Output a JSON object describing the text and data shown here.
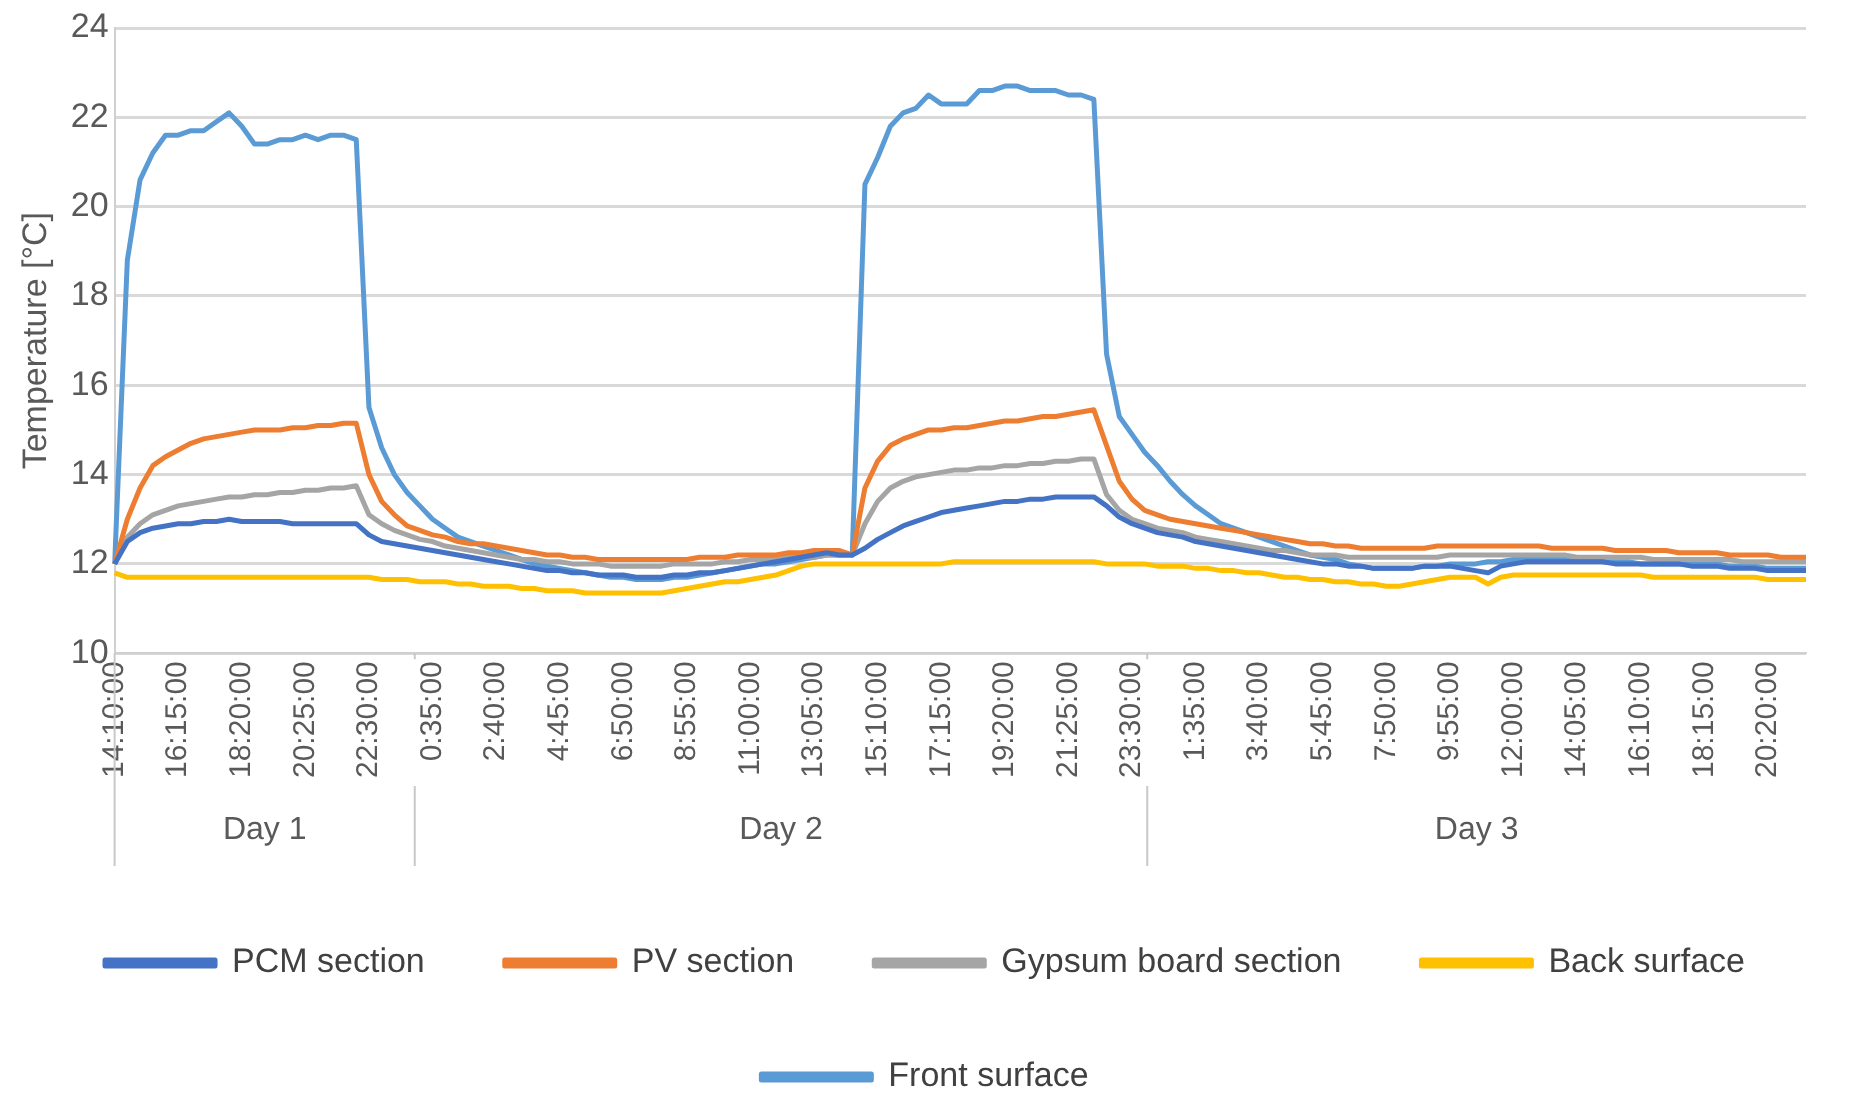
{
  "chart_data": {
    "type": "line",
    "ylabel": "Temperature [°C]",
    "ylim": [
      10,
      24
    ],
    "yticks": [
      10,
      12,
      14,
      16,
      18,
      20,
      22,
      24
    ],
    "grid": "y",
    "legend": "bottom",
    "categories": [
      "14:10:00",
      null,
      null,
      null,
      null,
      "16:15:00",
      null,
      null,
      null,
      null,
      "18:20:00",
      null,
      null,
      null,
      null,
      "20:25:00",
      null,
      null,
      null,
      null,
      "22:30:00",
      null,
      null,
      null,
      null,
      "0:35:00",
      null,
      null,
      null,
      null,
      "2:40:00",
      null,
      null,
      null,
      null,
      "4:45:00",
      null,
      null,
      null,
      null,
      "6:50:00",
      null,
      null,
      null,
      null,
      "8:55:00",
      null,
      null,
      null,
      null,
      "11:00:00",
      null,
      null,
      null,
      null,
      "13:05:00",
      null,
      null,
      null,
      null,
      "15:10:00",
      null,
      null,
      null,
      null,
      "17:15:00",
      null,
      null,
      null,
      null,
      "19:20:00",
      null,
      null,
      null,
      null,
      "21:25:00",
      null,
      null,
      null,
      null,
      "23:30:00",
      null,
      null,
      null,
      null,
      "1:35:00",
      null,
      null,
      null,
      null,
      "3:40:00",
      null,
      null,
      null,
      null,
      "5:45:00",
      null,
      null,
      null,
      null,
      "7:50:00",
      null,
      null,
      null,
      null,
      "9:55:00",
      null,
      null,
      null,
      null,
      "12:00:00",
      null,
      null,
      null,
      null,
      "14:05:00",
      null,
      null,
      null,
      null,
      "16:10:00",
      null,
      null,
      null,
      null,
      "18:15:00",
      null,
      null,
      null,
      null,
      "20:20:00",
      null,
      null,
      null
    ],
    "annotations": [
      "Day 1",
      "Day 2",
      "Day 3"
    ],
    "series": [
      {
        "name": "PCM section",
        "color": "#4472c4",
        "values": [
          12.0,
          12.5,
          12.7,
          12.8,
          12.85,
          12.9,
          12.9,
          12.95,
          12.95,
          13.0,
          12.95,
          12.95,
          12.95,
          12.95,
          12.9,
          12.9,
          12.9,
          12.9,
          12.9,
          12.9,
          12.65,
          12.5,
          12.45,
          12.4,
          12.35,
          12.3,
          12.25,
          12.2,
          12.15,
          12.1,
          12.05,
          12.0,
          11.95,
          11.9,
          11.85,
          11.85,
          11.8,
          11.8,
          11.75,
          11.75,
          11.75,
          11.7,
          11.7,
          11.7,
          11.75,
          11.75,
          11.8,
          11.8,
          11.85,
          11.9,
          11.95,
          12.0,
          12.05,
          12.1,
          12.15,
          12.2,
          12.25,
          12.2,
          12.2,
          12.35,
          12.55,
          12.7,
          12.85,
          12.95,
          13.05,
          13.15,
          13.2,
          13.25,
          13.3,
          13.35,
          13.4,
          13.4,
          13.45,
          13.45,
          13.5,
          13.5,
          13.5,
          13.5,
          13.3,
          13.05,
          12.9,
          12.8,
          12.7,
          12.65,
          12.6,
          12.5,
          12.45,
          12.4,
          12.35,
          12.3,
          12.25,
          12.2,
          12.15,
          12.1,
          12.05,
          12.0,
          12.0,
          11.95,
          11.95,
          11.9,
          11.9,
          11.9,
          11.9,
          11.95,
          11.95,
          11.95,
          11.9,
          11.85,
          11.8,
          11.95,
          12.0,
          12.05,
          12.05,
          12.05,
          12.05,
          12.05,
          12.05,
          12.05,
          12.0,
          12.0,
          12.0,
          12.0,
          12.0,
          12.0,
          11.95,
          11.95,
          11.95,
          11.9,
          11.9,
          11.9,
          11.85,
          11.85,
          11.85,
          11.85
        ]
      },
      {
        "name": "PV section",
        "color": "#ed7d31",
        "values": [
          12.0,
          13.0,
          13.7,
          14.2,
          14.4,
          14.55,
          14.7,
          14.8,
          14.85,
          14.9,
          14.95,
          15.0,
          15.0,
          15.0,
          15.05,
          15.05,
          15.1,
          15.1,
          15.15,
          15.15,
          14.0,
          13.4,
          13.1,
          12.85,
          12.75,
          12.65,
          12.6,
          12.5,
          12.45,
          12.45,
          12.4,
          12.35,
          12.3,
          12.25,
          12.2,
          12.2,
          12.15,
          12.15,
          12.1,
          12.1,
          12.1,
          12.1,
          12.1,
          12.1,
          12.1,
          12.1,
          12.15,
          12.15,
          12.15,
          12.2,
          12.2,
          12.2,
          12.2,
          12.25,
          12.25,
          12.3,
          12.3,
          12.3,
          12.2,
          13.7,
          14.3,
          14.65,
          14.8,
          14.9,
          15.0,
          15.0,
          15.05,
          15.05,
          15.1,
          15.15,
          15.2,
          15.2,
          15.25,
          15.3,
          15.3,
          15.35,
          15.4,
          15.45,
          14.65,
          13.85,
          13.45,
          13.2,
          13.1,
          13.0,
          12.95,
          12.9,
          12.85,
          12.8,
          12.75,
          12.7,
          12.65,
          12.6,
          12.55,
          12.5,
          12.45,
          12.45,
          12.4,
          12.4,
          12.35,
          12.35,
          12.35,
          12.35,
          12.35,
          12.35,
          12.4,
          12.4,
          12.4,
          12.4,
          12.4,
          12.4,
          12.4,
          12.4,
          12.4,
          12.35,
          12.35,
          12.35,
          12.35,
          12.35,
          12.3,
          12.3,
          12.3,
          12.3,
          12.3,
          12.25,
          12.25,
          12.25,
          12.25,
          12.2,
          12.2,
          12.2,
          12.2,
          12.15,
          12.15,
          12.15
        ]
      },
      {
        "name": "Gypsum board section",
        "color": "#a5a5a5",
        "values": [
          12.0,
          12.6,
          12.9,
          13.1,
          13.2,
          13.3,
          13.35,
          13.4,
          13.45,
          13.5,
          13.5,
          13.55,
          13.55,
          13.6,
          13.6,
          13.65,
          13.65,
          13.7,
          13.7,
          13.75,
          13.1,
          12.9,
          12.75,
          12.65,
          12.55,
          12.5,
          12.4,
          12.35,
          12.3,
          12.25,
          12.2,
          12.15,
          12.1,
          12.1,
          12.05,
          12.05,
          12.0,
          12.0,
          12.0,
          11.95,
          11.95,
          11.95,
          11.95,
          11.95,
          12.0,
          12.0,
          12.0,
          12.0,
          12.05,
          12.05,
          12.1,
          12.1,
          12.1,
          12.15,
          12.15,
          12.15,
          12.2,
          12.2,
          12.2,
          12.9,
          13.4,
          13.7,
          13.85,
          13.95,
          14.0,
          14.05,
          14.1,
          14.1,
          14.15,
          14.15,
          14.2,
          14.2,
          14.25,
          14.25,
          14.3,
          14.3,
          14.35,
          14.35,
          13.55,
          13.2,
          13.0,
          12.9,
          12.8,
          12.75,
          12.7,
          12.6,
          12.55,
          12.5,
          12.45,
          12.4,
          12.35,
          12.3,
          12.3,
          12.25,
          12.2,
          12.2,
          12.2,
          12.15,
          12.15,
          12.15,
          12.15,
          12.15,
          12.15,
          12.15,
          12.15,
          12.2,
          12.2,
          12.2,
          12.2,
          12.2,
          12.2,
          12.2,
          12.2,
          12.2,
          12.2,
          12.15,
          12.15,
          12.15,
          12.15,
          12.15,
          12.15,
          12.1,
          12.1,
          12.1,
          12.1,
          12.1,
          12.1,
          12.1,
          12.05,
          12.05,
          12.05,
          12.05,
          12.05,
          12.05
        ]
      },
      {
        "name": "Back surface",
        "color": "#ffc000",
        "values": [
          11.8,
          11.7,
          11.7,
          11.7,
          11.7,
          11.7,
          11.7,
          11.7,
          11.7,
          11.7,
          11.7,
          11.7,
          11.7,
          11.7,
          11.7,
          11.7,
          11.7,
          11.7,
          11.7,
          11.7,
          11.7,
          11.65,
          11.65,
          11.65,
          11.6,
          11.6,
          11.6,
          11.55,
          11.55,
          11.5,
          11.5,
          11.5,
          11.45,
          11.45,
          11.4,
          11.4,
          11.4,
          11.35,
          11.35,
          11.35,
          11.35,
          11.35,
          11.35,
          11.35,
          11.4,
          11.45,
          11.5,
          11.55,
          11.6,
          11.6,
          11.65,
          11.7,
          11.75,
          11.85,
          11.95,
          12.0,
          12.0,
          12.0,
          12.0,
          12.0,
          12.0,
          12.0,
          12.0,
          12.0,
          12.0,
          12.0,
          12.05,
          12.05,
          12.05,
          12.05,
          12.05,
          12.05,
          12.05,
          12.05,
          12.05,
          12.05,
          12.05,
          12.05,
          12.0,
          12.0,
          12.0,
          12.0,
          11.95,
          11.95,
          11.95,
          11.9,
          11.9,
          11.85,
          11.85,
          11.8,
          11.8,
          11.75,
          11.7,
          11.7,
          11.65,
          11.65,
          11.6,
          11.6,
          11.55,
          11.55,
          11.5,
          11.5,
          11.55,
          11.6,
          11.65,
          11.7,
          11.7,
          11.7,
          11.55,
          11.7,
          11.75,
          11.75,
          11.75,
          11.75,
          11.75,
          11.75,
          11.75,
          11.75,
          11.75,
          11.75,
          11.75,
          11.7,
          11.7,
          11.7,
          11.7,
          11.7,
          11.7,
          11.7,
          11.7,
          11.7,
          11.65,
          11.65,
          11.65,
          11.65
        ]
      },
      {
        "name": "Front surface",
        "color": "#5b9bd5",
        "values": [
          12.0,
          18.8,
          20.6,
          21.2,
          21.6,
          21.6,
          21.7,
          21.7,
          21.9,
          22.1,
          21.8,
          21.4,
          21.4,
          21.5,
          21.5,
          21.6,
          21.5,
          21.6,
          21.6,
          21.5,
          15.5,
          14.6,
          14.0,
          13.6,
          13.3,
          13.0,
          12.8,
          12.6,
          12.5,
          12.4,
          12.3,
          12.2,
          12.1,
          12.0,
          11.95,
          11.9,
          11.85,
          11.8,
          11.75,
          11.7,
          11.7,
          11.65,
          11.65,
          11.65,
          11.7,
          11.7,
          11.75,
          11.8,
          11.85,
          11.9,
          11.95,
          12.0,
          12.0,
          12.05,
          12.1,
          12.15,
          12.2,
          12.2,
          12.2,
          20.5,
          21.1,
          21.8,
          22.1,
          22.2,
          22.5,
          22.3,
          22.3,
          22.3,
          22.6,
          22.6,
          22.7,
          22.7,
          22.6,
          22.6,
          22.6,
          22.5,
          22.5,
          22.4,
          16.7,
          15.3,
          14.9,
          14.5,
          14.2,
          13.85,
          13.55,
          13.3,
          13.1,
          12.9,
          12.8,
          12.7,
          12.6,
          12.5,
          12.4,
          12.3,
          12.2,
          12.15,
          12.1,
          12.0,
          11.95,
          11.9,
          11.9,
          11.9,
          11.9,
          11.95,
          11.95,
          12.0,
          12.0,
          12.0,
          12.05,
          12.05,
          12.1,
          12.1,
          12.1,
          12.1,
          12.1,
          12.1,
          12.1,
          12.05,
          12.05,
          12.05,
          12.0,
          12.0,
          12.0,
          12.0,
          12.0,
          12.0,
          12.0,
          11.95,
          11.95,
          11.95,
          11.9,
          11.9,
          11.9,
          11.9
        ]
      }
    ]
  }
}
